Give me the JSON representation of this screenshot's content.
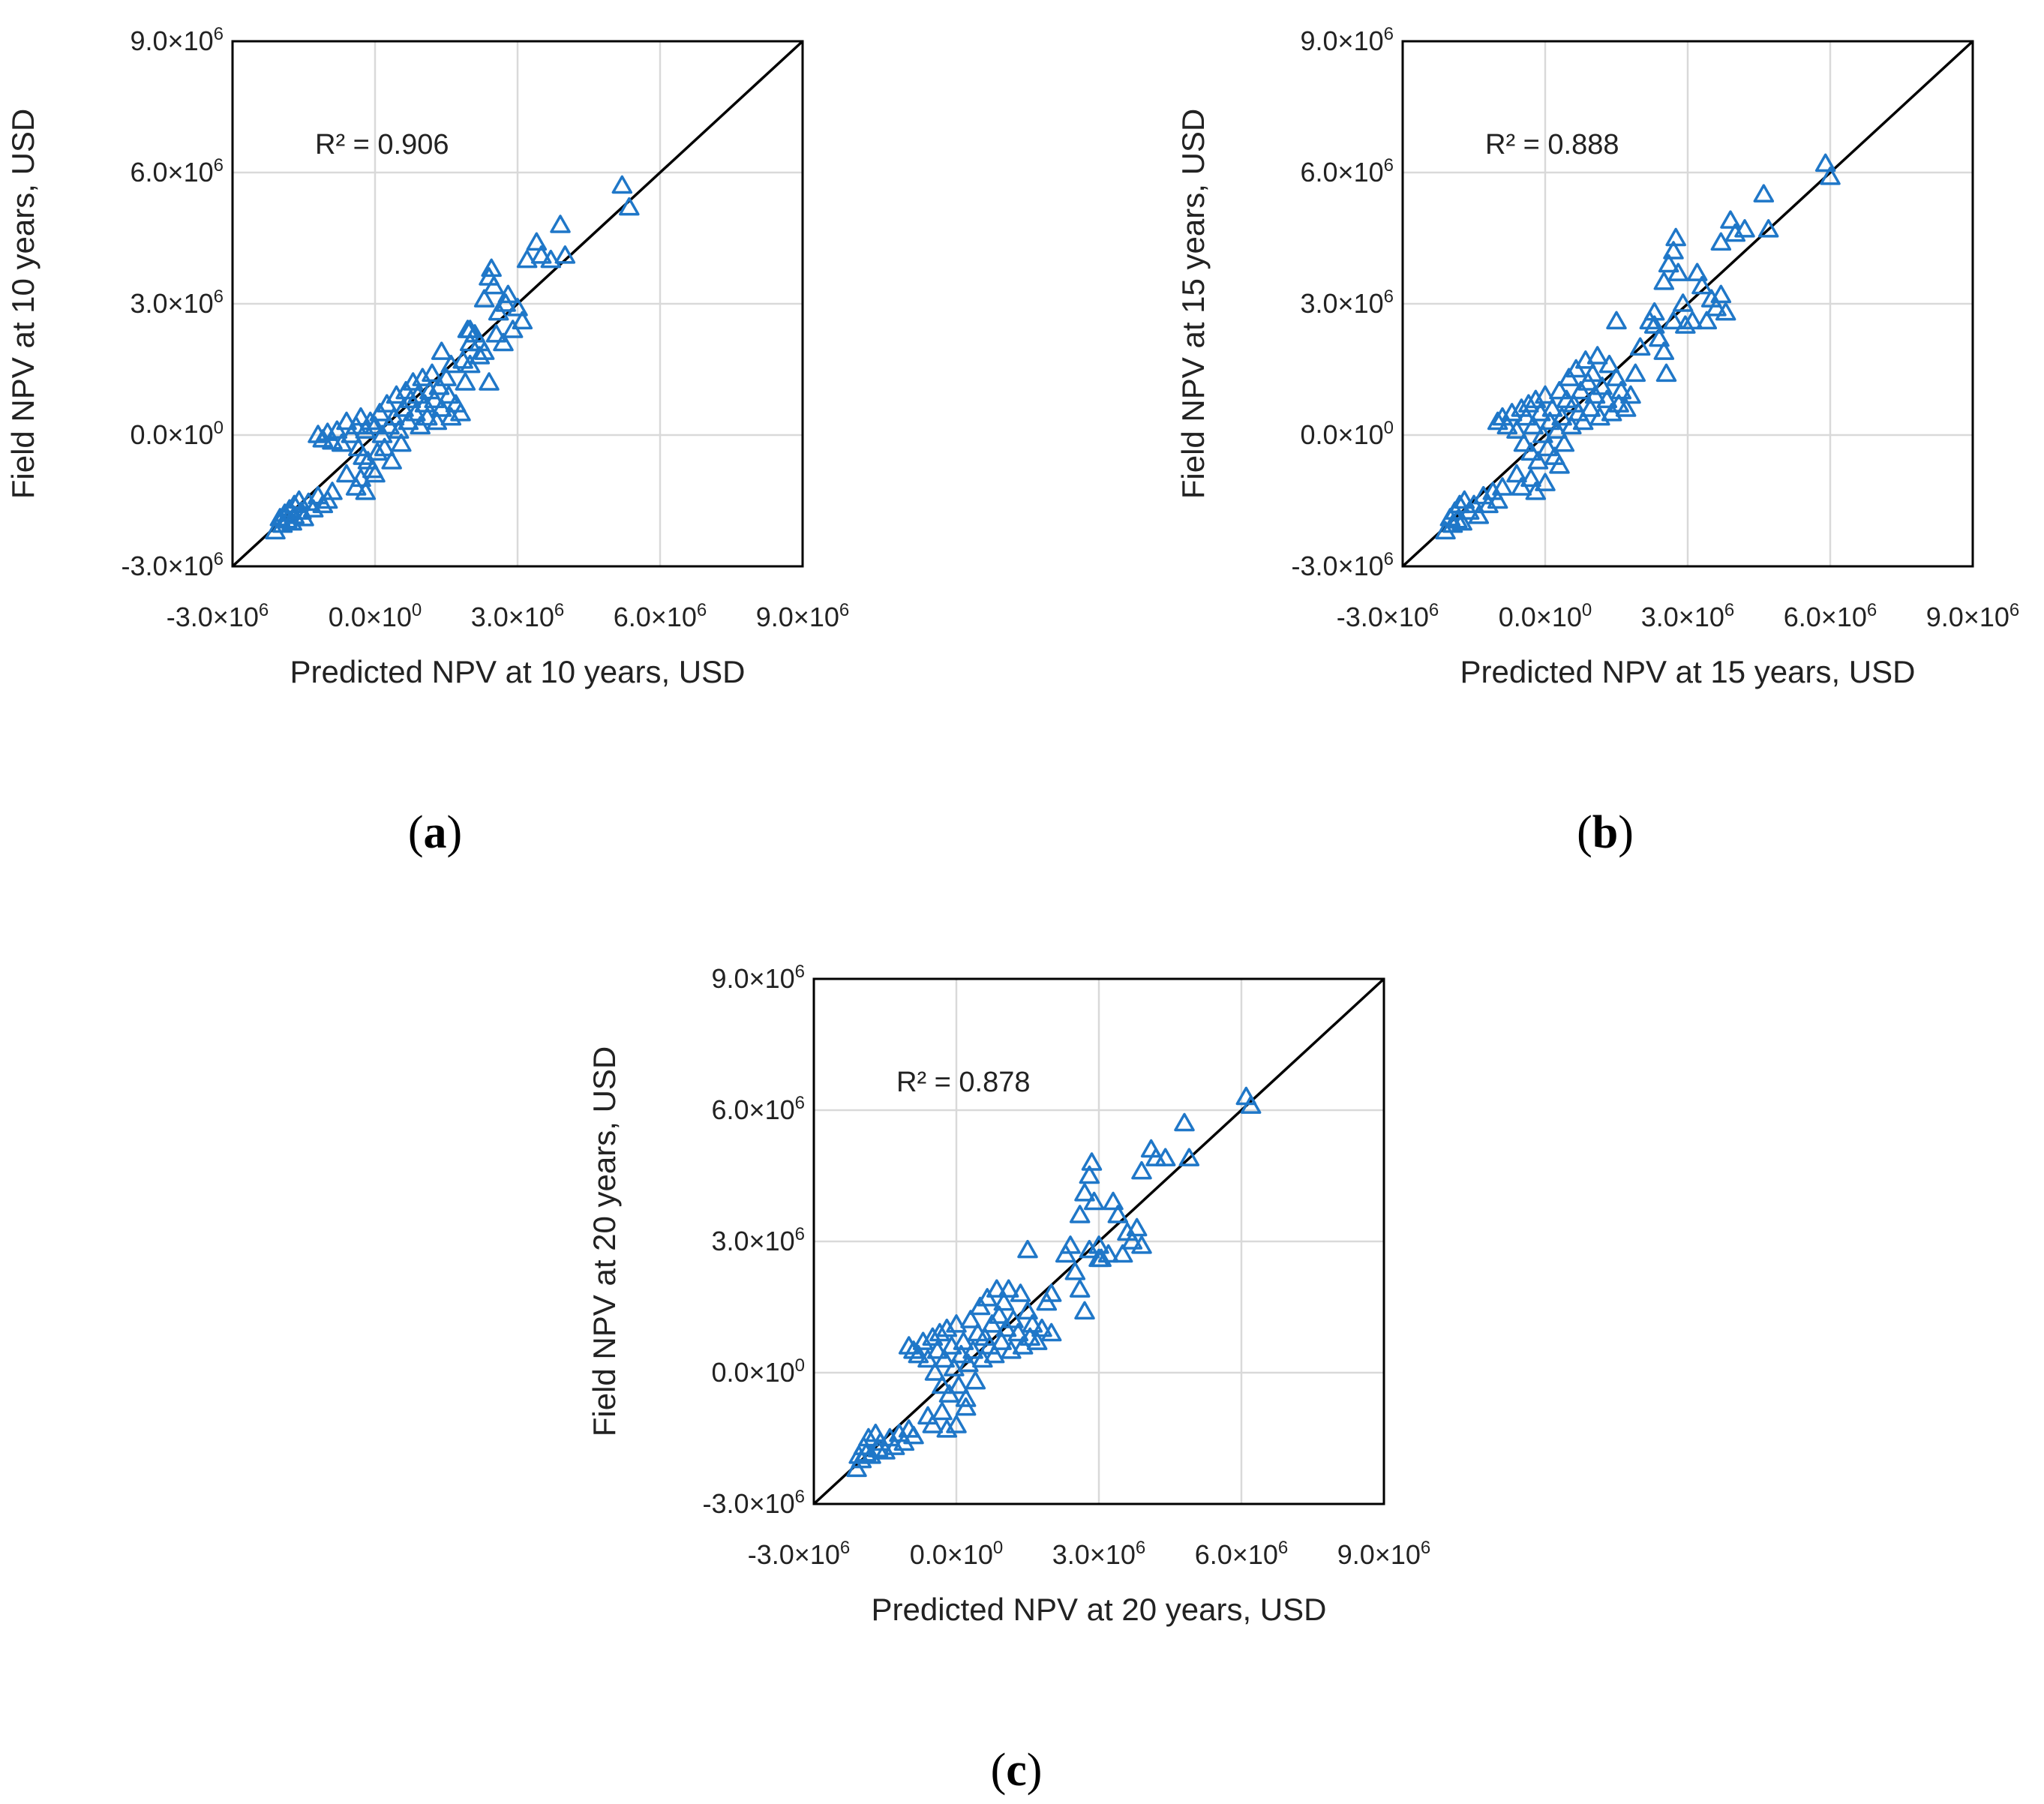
{
  "colors": {
    "marker": "#1f77c8",
    "grid": "#d9d9d9",
    "line": "#000000"
  },
  "chart_data": [
    {
      "type": "scatter",
      "panel_label": "(a)",
      "xlabel": "Predicted NPV at 10 years, USD",
      "ylabel": "Field NPV at 10 years, USD",
      "annotation": "R² = 0.906",
      "xlim": [
        -3000000,
        9000000
      ],
      "ylim": [
        -3000000,
        9000000
      ],
      "ticks": [
        -3000000,
        0,
        3000000,
        6000000,
        9000000
      ],
      "tick_labels": [
        "-3.0×10^6",
        "0.0×10^0",
        "3.0×10^6",
        "6.0×10^6",
        "9.0×10^6"
      ],
      "reference_line": "y = x",
      "marker": "open triangle",
      "points": [
        [
          -2.1,
          -2.2
        ],
        [
          -2.0,
          -1.9
        ],
        [
          -1.95,
          -2.05
        ],
        [
          -1.9,
          -1.8
        ],
        [
          -1.85,
          -1.95
        ],
        [
          -1.8,
          -1.7
        ],
        [
          -1.75,
          -2.0
        ],
        [
          -1.7,
          -1.6
        ],
        [
          -1.7,
          -1.85
        ],
        [
          -1.6,
          -1.5
        ],
        [
          -1.55,
          -1.75
        ],
        [
          -1.5,
          -1.9
        ],
        [
          -1.4,
          -1.55
        ],
        [
          -1.3,
          -1.7
        ],
        [
          -1.2,
          -1.4
        ],
        [
          -1.1,
          -1.6
        ],
        [
          -1.0,
          -1.5
        ],
        [
          -0.9,
          -1.3
        ],
        [
          -1.2,
          0.0
        ],
        [
          -1.1,
          -0.1
        ],
        [
          -1.0,
          0.05
        ],
        [
          -0.9,
          -0.15
        ],
        [
          -0.8,
          0.1
        ],
        [
          -0.7,
          -0.2
        ],
        [
          -0.6,
          0.3
        ],
        [
          -0.5,
          0.0
        ],
        [
          -0.4,
          0.2
        ],
        [
          -0.35,
          -0.3
        ],
        [
          -0.3,
          0.4
        ],
        [
          -0.25,
          -0.5
        ],
        [
          -0.2,
          0.1
        ],
        [
          -0.15,
          -0.6
        ],
        [
          -0.1,
          0.3
        ],
        [
          -0.05,
          -0.8
        ],
        [
          0.0,
          0.2
        ],
        [
          0.05,
          -0.4
        ],
        [
          0.1,
          0.5
        ],
        [
          0.15,
          0.0
        ],
        [
          0.2,
          -0.3
        ],
        [
          0.25,
          0.7
        ],
        [
          0.3,
          0.2
        ],
        [
          0.35,
          -0.6
        ],
        [
          0.4,
          0.4
        ],
        [
          0.45,
          0.9
        ],
        [
          0.5,
          0.1
        ],
        [
          0.55,
          -0.2
        ],
        [
          0.6,
          0.6
        ],
        [
          0.65,
          1.0
        ],
        [
          0.7,
          0.3
        ],
        [
          0.75,
          0.8
        ],
        [
          0.8,
          1.2
        ],
        [
          0.85,
          0.5
        ],
        [
          0.9,
          0.9
        ],
        [
          0.95,
          0.2
        ],
        [
          1.0,
          1.3
        ],
        [
          1.05,
          0.7
        ],
        [
          1.1,
          0.4
        ],
        [
          1.15,
          1.0
        ],
        [
          1.2,
          1.4
        ],
        [
          1.25,
          0.8
        ],
        [
          1.3,
          0.3
        ],
        [
          1.35,
          1.1
        ],
        [
          1.4,
          0.6
        ],
        [
          1.5,
          1.3
        ],
        [
          1.55,
          0.9
        ],
        [
          1.6,
          0.4
        ],
        [
          1.7,
          0.7
        ],
        [
          1.8,
          0.5
        ],
        [
          1.85,
          1.7
        ],
        [
          1.9,
          1.2
        ],
        [
          2.0,
          2.1
        ],
        [
          1.6,
          1.6
        ],
        [
          1.4,
          1.9
        ],
        [
          -0.6,
          -0.9
        ],
        [
          -0.4,
          -1.2
        ],
        [
          -0.3,
          -1.0
        ],
        [
          -0.2,
          -1.3
        ],
        [
          0.0,
          -0.9
        ],
        [
          2.0,
          2.4
        ],
        [
          2.1,
          2.3
        ],
        [
          2.2,
          1.8
        ],
        [
          2.3,
          1.9
        ],
        [
          2.3,
          3.1
        ],
        [
          2.4,
          3.6
        ],
        [
          2.45,
          3.8
        ],
        [
          2.5,
          3.4
        ],
        [
          2.55,
          2.3
        ],
        [
          2.6,
          2.8
        ],
        [
          2.7,
          2.1
        ],
        [
          2.75,
          3.0
        ],
        [
          2.8,
          3.2
        ],
        [
          2.9,
          2.4
        ],
        [
          3.0,
          2.9
        ],
        [
          3.1,
          2.6
        ],
        [
          2.4,
          1.2
        ],
        [
          2.2,
          2.1
        ],
        [
          2.0,
          1.6
        ],
        [
          1.95,
          2.4
        ],
        [
          3.2,
          4.0
        ],
        [
          3.4,
          4.4
        ],
        [
          3.5,
          4.1
        ],
        [
          3.7,
          4.0
        ],
        [
          3.9,
          4.8
        ],
        [
          4.0,
          4.1
        ],
        [
          5.2,
          5.7
        ],
        [
          5.35,
          5.2
        ]
      ]
    },
    {
      "type": "scatter",
      "panel_label": "(b)",
      "xlabel": "Predicted NPV at 15 years, USD",
      "ylabel": "Field NPV at 15 years, USD",
      "annotation": "R² = 0.888",
      "xlim": [
        -3000000,
        9000000
      ],
      "ylim": [
        -3000000,
        9000000
      ],
      "ticks": [
        -3000000,
        0,
        3000000,
        6000000,
        9000000
      ],
      "tick_labels": [
        "-3.0×10^6",
        "0.0×10^0",
        "3.0×10^6",
        "6.0×10^6",
        "9.0×10^6"
      ],
      "reference_line": "y = x",
      "marker": "open triangle",
      "points": [
        [
          -2.1,
          -2.2
        ],
        [
          -2.0,
          -1.9
        ],
        [
          -1.95,
          -2.05
        ],
        [
          -1.9,
          -1.75
        ],
        [
          -1.85,
          -1.95
        ],
        [
          -1.8,
          -1.6
        ],
        [
          -1.75,
          -2.0
        ],
        [
          -1.7,
          -1.5
        ],
        [
          -1.6,
          -1.75
        ],
        [
          -1.5,
          -1.6
        ],
        [
          -1.4,
          -1.85
        ],
        [
          -1.3,
          -1.4
        ],
        [
          -1.2,
          -1.6
        ],
        [
          -1.1,
          -1.3
        ],
        [
          -1.0,
          -1.5
        ],
        [
          -0.9,
          -1.2
        ],
        [
          -1.0,
          0.3
        ],
        [
          -0.9,
          0.4
        ],
        [
          -0.8,
          0.2
        ],
        [
          -0.7,
          0.5
        ],
        [
          -0.6,
          0.1
        ],
        [
          -0.5,
          0.6
        ],
        [
          -0.45,
          -0.2
        ],
        [
          -0.4,
          0.4
        ],
        [
          -0.35,
          0.7
        ],
        [
          -0.3,
          -0.4
        ],
        [
          -0.25,
          0.2
        ],
        [
          -0.2,
          0.8
        ],
        [
          -0.15,
          -0.6
        ],
        [
          -0.1,
          0.5
        ],
        [
          -0.05,
          0.0
        ],
        [
          0.0,
          0.9
        ],
        [
          0.05,
          -0.3
        ],
        [
          0.1,
          0.3
        ],
        [
          0.15,
          0.6
        ],
        [
          0.2,
          -0.5
        ],
        [
          0.25,
          0.1
        ],
        [
          0.3,
          1.0
        ],
        [
          0.35,
          0.4
        ],
        [
          0.4,
          -0.2
        ],
        [
          0.45,
          0.8
        ],
        [
          0.5,
          1.3
        ],
        [
          0.55,
          0.2
        ],
        [
          0.6,
          0.7
        ],
        [
          0.65,
          1.5
        ],
        [
          0.7,
          0.5
        ],
        [
          0.75,
          1.0
        ],
        [
          0.8,
          0.3
        ],
        [
          0.85,
          1.7
        ],
        [
          0.9,
          1.2
        ],
        [
          0.95,
          0.6
        ],
        [
          1.0,
          1.4
        ],
        [
          1.05,
          0.9
        ],
        [
          1.1,
          1.8
        ],
        [
          1.15,
          0.4
        ],
        [
          1.2,
          1.1
        ],
        [
          1.3,
          0.8
        ],
        [
          1.35,
          1.6
        ],
        [
          1.4,
          0.5
        ],
        [
          1.5,
          1.3
        ],
        [
          1.55,
          0.7
        ],
        [
          1.6,
          1.0
        ],
        [
          1.7,
          0.6
        ],
        [
          1.8,
          0.9
        ],
        [
          1.9,
          1.4
        ],
        [
          -0.6,
          -0.9
        ],
        [
          -0.5,
          -1.2
        ],
        [
          -0.3,
          -1.0
        ],
        [
          -0.2,
          -1.3
        ],
        [
          0.0,
          -1.1
        ],
        [
          0.3,
          -0.7
        ],
        [
          1.5,
          2.6
        ],
        [
          2.0,
          2.0
        ],
        [
          2.2,
          2.6
        ],
        [
          2.3,
          2.8
        ],
        [
          2.4,
          2.2
        ],
        [
          2.5,
          1.9
        ],
        [
          2.55,
          1.4
        ],
        [
          2.5,
          3.5
        ],
        [
          2.6,
          3.9
        ],
        [
          2.7,
          4.2
        ],
        [
          2.75,
          4.5
        ],
        [
          2.8,
          3.7
        ],
        [
          2.9,
          3.0
        ],
        [
          2.95,
          2.5
        ],
        [
          3.1,
          2.6
        ],
        [
          3.2,
          3.7
        ],
        [
          3.3,
          3.4
        ],
        [
          3.4,
          2.6
        ],
        [
          3.5,
          3.1
        ],
        [
          3.6,
          2.9
        ],
        [
          3.7,
          3.2
        ],
        [
          3.8,
          2.8
        ],
        [
          2.3,
          2.5
        ],
        [
          2.7,
          2.6
        ],
        [
          3.7,
          4.4
        ],
        [
          3.9,
          4.9
        ],
        [
          4.0,
          4.6
        ],
        [
          4.2,
          4.7
        ],
        [
          4.6,
          5.5
        ],
        [
          4.7,
          4.7
        ],
        [
          5.9,
          6.2
        ],
        [
          6.0,
          5.9
        ]
      ]
    },
    {
      "type": "scatter",
      "panel_label": "(c)",
      "xlabel": "Predicted NPV at 20 years, USD",
      "ylabel": "Field NPV at 20 years, USD",
      "annotation": "R² = 0.878",
      "xlim": [
        -3000000,
        9000000
      ],
      "ylim": [
        -3000000,
        9000000
      ],
      "ticks": [
        -3000000,
        0,
        3000000,
        6000000,
        9000000
      ],
      "tick_labels": [
        "-3.0×10^6",
        "0.0×10^0",
        "3.0×10^6",
        "6.0×10^6",
        "9.0×10^6"
      ],
      "reference_line": "y = x",
      "marker": "open triangle",
      "points": [
        [
          -2.1,
          -2.2
        ],
        [
          -2.05,
          -1.9
        ],
        [
          -2.0,
          -2.0
        ],
        [
          -1.95,
          -1.7
        ],
        [
          -1.9,
          -1.85
        ],
        [
          -1.85,
          -1.5
        ],
        [
          -1.8,
          -1.9
        ],
        [
          -1.7,
          -1.4
        ],
        [
          -1.65,
          -1.75
        ],
        [
          -1.6,
          -1.6
        ],
        [
          -1.5,
          -1.8
        ],
        [
          -1.4,
          -1.5
        ],
        [
          -1.3,
          -1.7
        ],
        [
          -1.2,
          -1.4
        ],
        [
          -1.1,
          -1.6
        ],
        [
          -1.0,
          -1.3
        ],
        [
          -0.9,
          -1.45
        ],
        [
          -1.0,
          0.6
        ],
        [
          -0.9,
          0.5
        ],
        [
          -0.8,
          0.4
        ],
        [
          -0.7,
          0.7
        ],
        [
          -0.6,
          0.3
        ],
        [
          -0.5,
          0.8
        ],
        [
          -0.45,
          0.0
        ],
        [
          -0.4,
          0.5
        ],
        [
          -0.35,
          0.9
        ],
        [
          -0.3,
          -0.3
        ],
        [
          -0.25,
          0.3
        ],
        [
          -0.2,
          1.0
        ],
        [
          -0.15,
          -0.5
        ],
        [
          -0.1,
          0.6
        ],
        [
          -0.05,
          0.1
        ],
        [
          0.0,
          1.1
        ],
        [
          0.05,
          -0.3
        ],
        [
          0.1,
          0.4
        ],
        [
          0.15,
          0.7
        ],
        [
          0.2,
          -0.6
        ],
        [
          0.25,
          0.2
        ],
        [
          0.3,
          1.2
        ],
        [
          0.35,
          0.5
        ],
        [
          0.4,
          -0.2
        ],
        [
          0.45,
          0.9
        ],
        [
          0.5,
          1.5
        ],
        [
          0.55,
          0.3
        ],
        [
          0.6,
          0.8
        ],
        [
          0.65,
          1.7
        ],
        [
          0.7,
          0.6
        ],
        [
          0.75,
          1.1
        ],
        [
          0.8,
          0.4
        ],
        [
          0.85,
          1.9
        ],
        [
          0.9,
          1.3
        ],
        [
          0.95,
          0.7
        ],
        [
          1.0,
          1.6
        ],
        [
          1.05,
          1.0
        ],
        [
          1.1,
          1.9
        ],
        [
          1.15,
          0.5
        ],
        [
          1.2,
          1.2
        ],
        [
          1.3,
          0.9
        ],
        [
          1.35,
          1.8
        ],
        [
          1.4,
          0.6
        ],
        [
          1.5,
          1.4
        ],
        [
          1.55,
          0.8
        ],
        [
          1.6,
          1.1
        ],
        [
          1.7,
          0.7
        ],
        [
          1.8,
          1.0
        ],
        [
          1.9,
          1.6
        ],
        [
          2.0,
          0.9
        ],
        [
          -0.6,
          -1.0
        ],
        [
          -0.5,
          -1.2
        ],
        [
          -0.3,
          -0.9
        ],
        [
          -0.2,
          -1.3
        ],
        [
          0.0,
          -1.2
        ],
        [
          0.2,
          -0.8
        ],
        [
          1.5,
          2.8
        ],
        [
          2.0,
          1.8
        ],
        [
          2.3,
          2.7
        ],
        [
          2.4,
          2.9
        ],
        [
          2.5,
          2.3
        ],
        [
          2.6,
          1.9
        ],
        [
          2.7,
          1.4
        ],
        [
          2.6,
          3.6
        ],
        [
          2.7,
          4.1
        ],
        [
          2.8,
          4.5
        ],
        [
          2.85,
          4.8
        ],
        [
          2.9,
          3.9
        ],
        [
          3.0,
          2.9
        ],
        [
          3.05,
          2.6
        ],
        [
          3.2,
          2.7
        ],
        [
          3.3,
          3.9
        ],
        [
          3.4,
          3.6
        ],
        [
          3.5,
          2.7
        ],
        [
          3.6,
          3.2
        ],
        [
          3.7,
          3.0
        ],
        [
          3.8,
          3.3
        ],
        [
          3.9,
          2.9
        ],
        [
          2.8,
          2.8
        ],
        [
          3.0,
          2.6
        ],
        [
          3.9,
          4.6
        ],
        [
          4.1,
          5.1
        ],
        [
          4.2,
          4.9
        ],
        [
          4.4,
          4.9
        ],
        [
          4.8,
          5.7
        ],
        [
          4.9,
          4.9
        ],
        [
          6.1,
          6.3
        ],
        [
          6.2,
          6.1
        ]
      ]
    }
  ]
}
